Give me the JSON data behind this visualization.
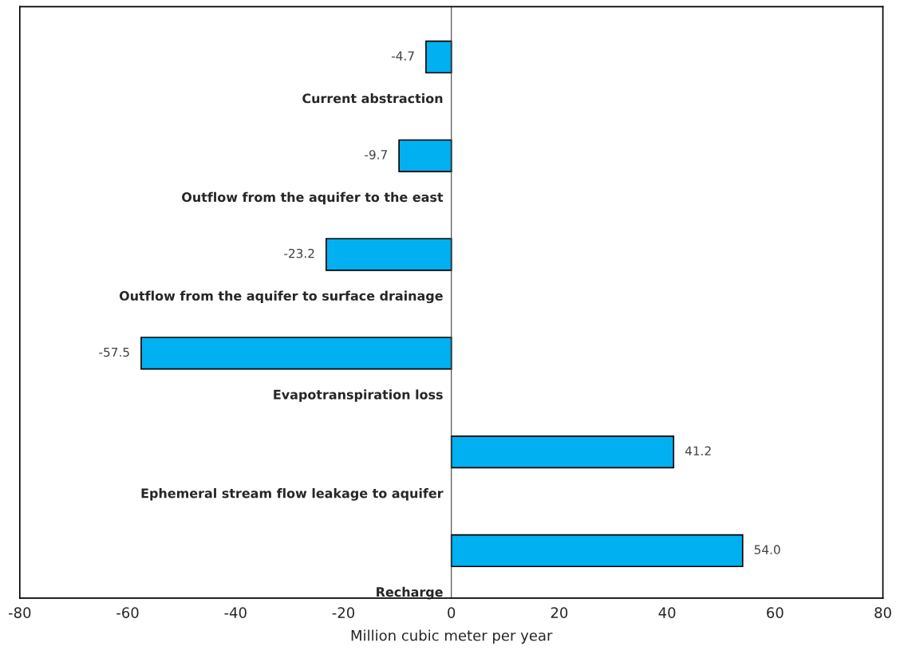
{
  "chart_data": {
    "type": "bar",
    "orientation": "horizontal",
    "xlabel": "Million cubic meter per year",
    "categories": [
      "Current abstraction",
      "Outflow from the aquifer to the east",
      "Outflow from the aquifer to surface drainage",
      "Evapotranspiration loss",
      "Ephemeral stream flow leakage to aquifer",
      "Recharge"
    ],
    "values": [
      -4.7,
      -9.7,
      -23.2,
      -57.5,
      41.2,
      54.0
    ],
    "value_labels": [
      "-4.7",
      "-9.7",
      "-23.2",
      "-57.5",
      "41.2",
      "54.0"
    ],
    "color": "#00b0f0",
    "xlim": [
      -80,
      80
    ],
    "xticks": [
      -80,
      -60,
      -40,
      -20,
      0,
      20,
      40,
      60,
      80
    ],
    "grid": false,
    "legend": false
  }
}
